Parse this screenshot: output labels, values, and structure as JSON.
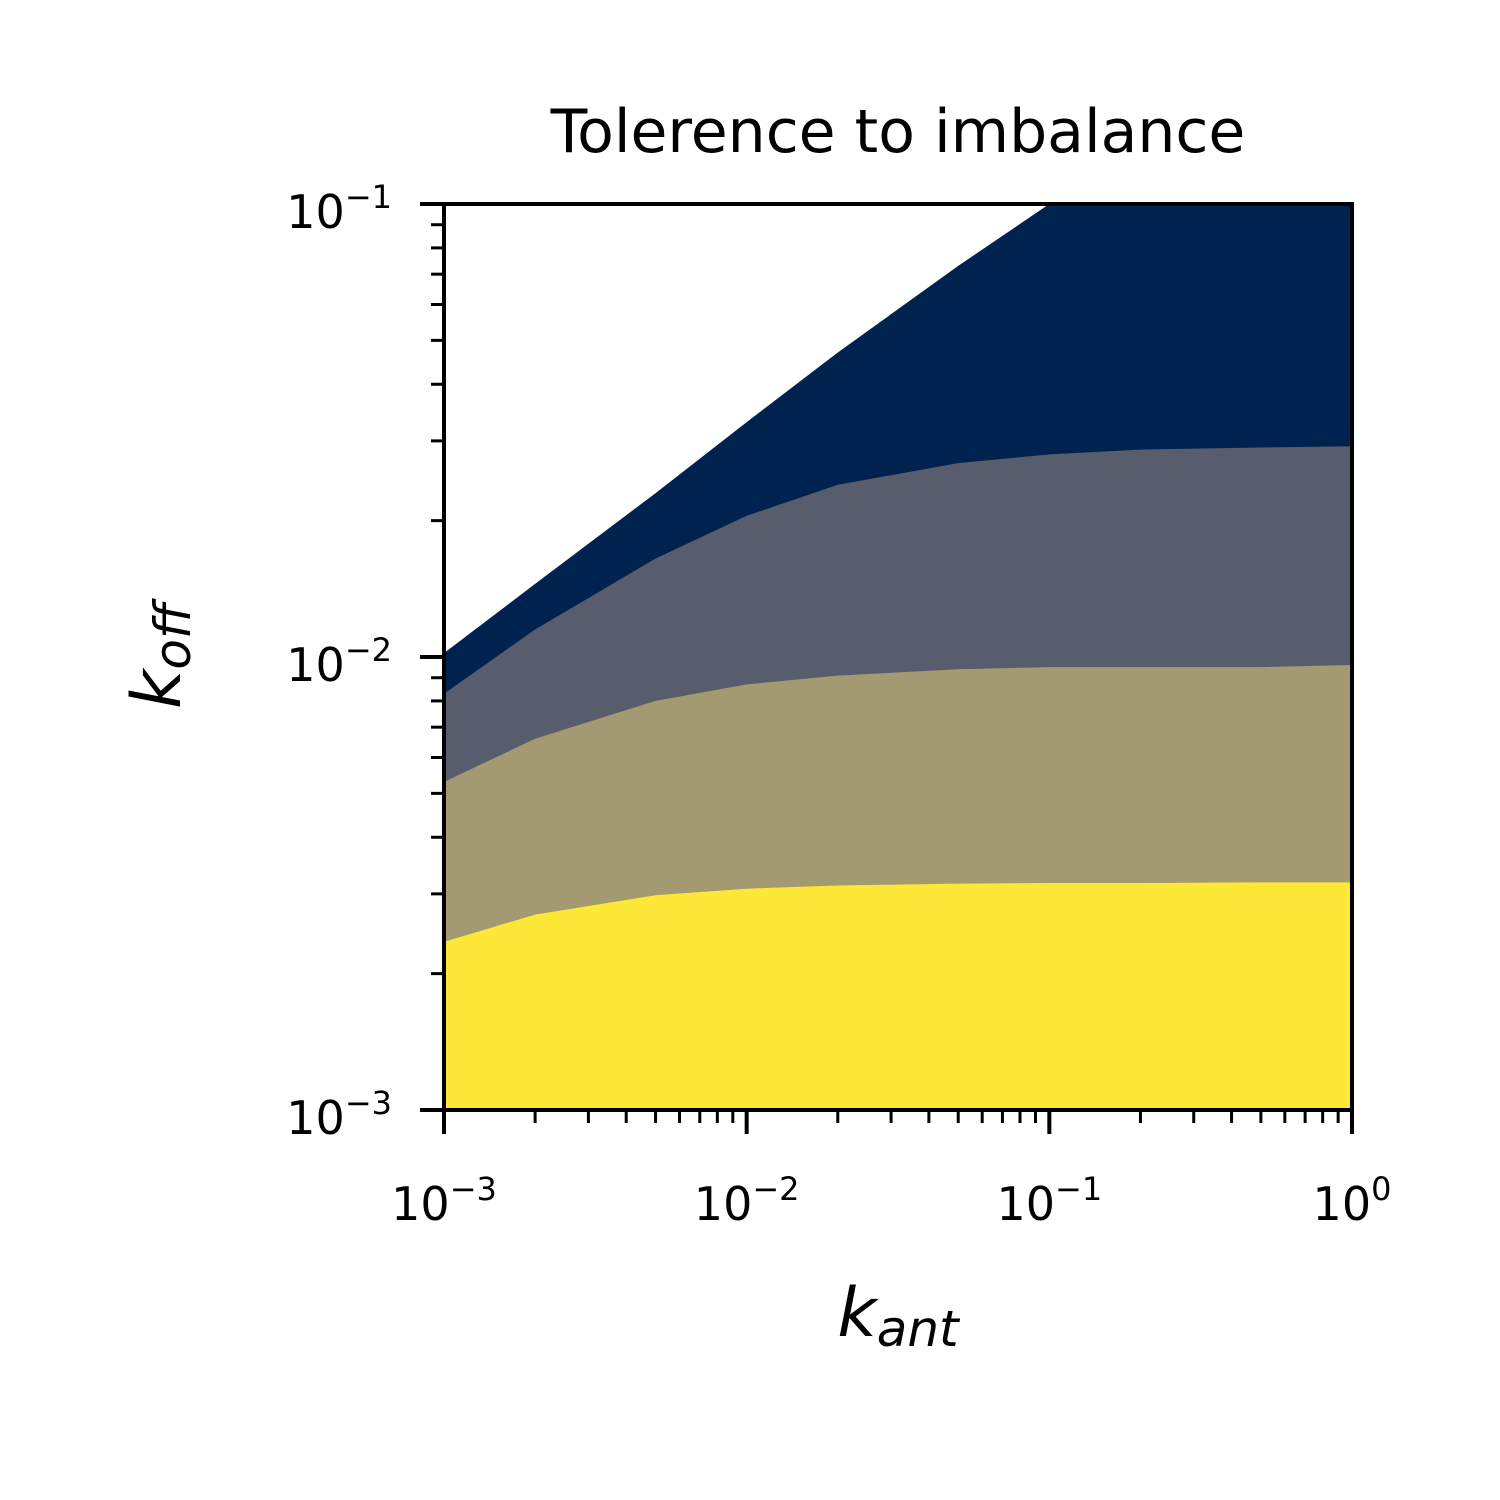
{
  "chart_data": {
    "type": "area",
    "title": "Tolerence to imbalance",
    "xlabel": {
      "base": "k",
      "sub": "ant"
    },
    "ylabel": {
      "base": "k",
      "sub": "off"
    },
    "xscale": "log",
    "yscale": "log",
    "xlim": [
      0.001,
      1
    ],
    "ylim": [
      0.001,
      0.1
    ],
    "xticks": [
      {
        "base": "10",
        "exp": "−3"
      },
      {
        "base": "10",
        "exp": "−2"
      },
      {
        "base": "10",
        "exp": "−1"
      },
      {
        "base": "10",
        "exp": "0"
      }
    ],
    "yticks": [
      {
        "base": "10",
        "exp": "−3"
      },
      {
        "base": "10",
        "exp": "−2"
      },
      {
        "base": "10",
        "exp": "−1"
      }
    ],
    "grid": false,
    "x": [
      0.001,
      0.002,
      0.005,
      0.01,
      0.02,
      0.05,
      0.1,
      0.2,
      0.5,
      1
    ],
    "series": [
      {
        "color": "#fde838",
        "upper": [
          0.00235,
          0.0027,
          0.00298,
          0.00308,
          0.00313,
          0.00316,
          0.00317,
          0.00317,
          0.00318,
          0.00318
        ]
      },
      {
        "color": "#a39a72",
        "upper": [
          0.0053,
          0.0066,
          0.008,
          0.0087,
          0.0091,
          0.0094,
          0.0095,
          0.0095,
          0.0095,
          0.0096
        ]
      },
      {
        "color": "#575d6d",
        "upper": [
          0.0083,
          0.0115,
          0.0165,
          0.0205,
          0.024,
          0.0268,
          0.028,
          0.0287,
          0.029,
          0.0292
        ]
      },
      {
        "color": "#00224e",
        "upper": [
          0.0102,
          0.0145,
          0.023,
          0.033,
          0.047,
          0.073,
          0.1,
          0.1,
          0.1,
          0.1
        ]
      }
    ]
  }
}
